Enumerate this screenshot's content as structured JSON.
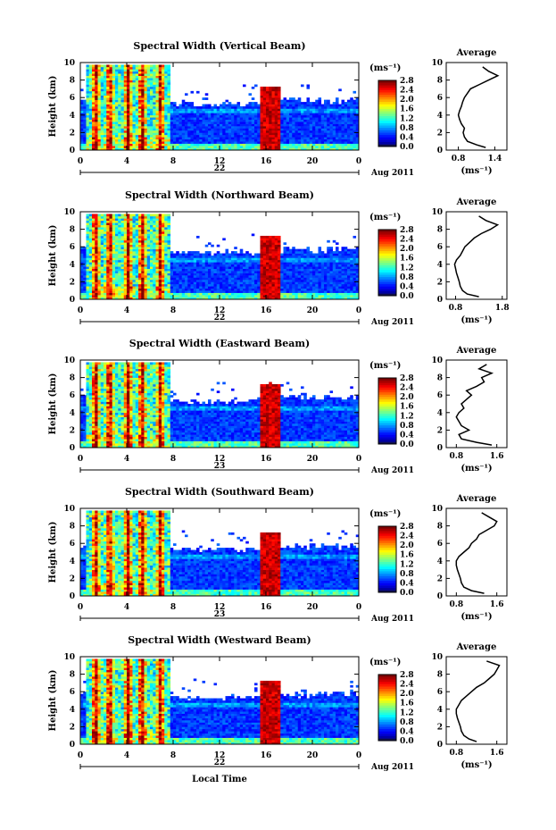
{
  "figure": {
    "xlabel_common": "Local Time",
    "date_label": "Aug 2011",
    "cbar_unit": "(ms⁻¹)",
    "avg_title": "Average",
    "avg_xlabel": "(ms⁻¹)"
  },
  "chart_data": [
    {
      "type": "heatmap",
      "title": "Spectral Width (Vertical Beam)",
      "ylabel": "Height (km)",
      "ylim": [
        0,
        10
      ],
      "yticks": [
        "0",
        "2",
        "4",
        "6",
        "8",
        "10"
      ],
      "xlim": [
        0,
        24
      ],
      "xticks": [
        "0",
        "4",
        "8",
        "12",
        "16",
        "20",
        "0"
      ],
      "day_label": "22",
      "colorbar": {
        "ticks": [
          "0.0",
          "0.4",
          "0.8",
          "1.2",
          "1.6",
          "2.0",
          "2.4",
          "2.8"
        ],
        "range": [
          0,
          2.8
        ]
      },
      "average_profile": {
        "xticks": [
          "0.8",
          "1.4"
        ],
        "xlim": [
          0.6,
          1.6
        ],
        "yticks": [
          "0",
          "2",
          "4",
          "6",
          "8",
          "10"
        ],
        "height_km": [
          0.3,
          0.6,
          1.0,
          1.5,
          2.0,
          2.5,
          3.0,
          3.5,
          4.0,
          4.5,
          5.0,
          5.5,
          6.0,
          6.5,
          7.0,
          7.5,
          8.0,
          8.5,
          9.0,
          9.5
        ],
        "width": [
          1.25,
          1.1,
          0.95,
          0.9,
          0.88,
          0.9,
          0.85,
          0.82,
          0.8,
          0.82,
          0.85,
          0.87,
          0.9,
          0.95,
          1.0,
          1.15,
          1.3,
          1.45,
          1.3,
          1.2
        ]
      }
    },
    {
      "type": "heatmap",
      "title": "Spectral Width (Northward Beam)",
      "ylabel": "Height (km)",
      "ylim": [
        0,
        10
      ],
      "yticks": [
        "0",
        "2",
        "4",
        "6",
        "8",
        "10"
      ],
      "xlim": [
        0,
        24
      ],
      "xticks": [
        "0",
        "4",
        "8",
        "12",
        "16",
        "20",
        "0"
      ],
      "day_label": "22",
      "colorbar": {
        "ticks": [
          "0.0",
          "0.4",
          "0.8",
          "1.2",
          "1.6",
          "2.0",
          "2.4",
          "2.8"
        ],
        "range": [
          0,
          2.8
        ]
      },
      "average_profile": {
        "xticks": [
          "0.8",
          "1.8"
        ],
        "xlim": [
          0.6,
          1.9
        ],
        "yticks": [
          "0",
          "2",
          "4",
          "6",
          "8",
          "10"
        ],
        "height_km": [
          0.3,
          0.6,
          1.0,
          1.5,
          2.0,
          2.5,
          3.0,
          3.5,
          4.0,
          4.5,
          5.0,
          5.5,
          6.0,
          6.5,
          7.0,
          7.5,
          8.0,
          8.5,
          9.0,
          9.5
        ],
        "width": [
          1.3,
          1.05,
          0.95,
          0.9,
          0.88,
          0.85,
          0.82,
          0.8,
          0.78,
          0.82,
          0.9,
          0.95,
          1.0,
          1.1,
          1.2,
          1.35,
          1.55,
          1.7,
          1.45,
          1.3
        ]
      }
    },
    {
      "type": "heatmap",
      "title": "Spectral Width (Eastward Beam)",
      "ylabel": "Height (km)",
      "ylim": [
        0,
        10
      ],
      "yticks": [
        "0",
        "2",
        "4",
        "6",
        "8",
        "10"
      ],
      "xlim": [
        0,
        24
      ],
      "xticks": [
        "0",
        "4",
        "8",
        "12",
        "16",
        "20",
        "0"
      ],
      "day_label": "23",
      "colorbar": {
        "ticks": [
          "0.0",
          "0.4",
          "0.8",
          "1.2",
          "1.6",
          "2.0",
          "2.4",
          "2.8"
        ],
        "range": [
          0,
          2.8
        ]
      },
      "average_profile": {
        "xticks": [
          "0.8",
          "1.6"
        ],
        "xlim": [
          0.6,
          1.8
        ],
        "yticks": [
          "0",
          "2",
          "4",
          "6",
          "8",
          "10"
        ],
        "height_km": [
          0.3,
          0.6,
          1.0,
          1.5,
          2.0,
          2.5,
          3.0,
          3.5,
          4.0,
          4.5,
          5.0,
          5.5,
          6.0,
          6.5,
          7.0,
          7.5,
          8.0,
          8.5,
          9.0,
          9.5
        ],
        "width": [
          1.5,
          1.2,
          0.9,
          0.85,
          1.05,
          0.9,
          0.85,
          0.8,
          0.85,
          0.95,
          0.9,
          1.0,
          1.1,
          1.0,
          1.2,
          1.35,
          1.3,
          1.5,
          1.25,
          1.4
        ]
      }
    },
    {
      "type": "heatmap",
      "title": "Spectral Width (Southward Beam)",
      "ylabel": "Height (km)",
      "ylim": [
        0,
        10
      ],
      "yticks": [
        "0",
        "2",
        "4",
        "6",
        "8",
        "10"
      ],
      "xlim": [
        0,
        24
      ],
      "xticks": [
        "0",
        "4",
        "8",
        "12",
        "16",
        "20",
        "0"
      ],
      "day_label": "23",
      "colorbar": {
        "ticks": [
          "0.0",
          "0.4",
          "0.8",
          "1.2",
          "1.6",
          "2.0",
          "2.4",
          "2.8"
        ],
        "range": [
          0,
          2.8
        ]
      },
      "average_profile": {
        "xticks": [
          "0.8",
          "1.6"
        ],
        "xlim": [
          0.6,
          1.8
        ],
        "yticks": [
          "0",
          "2",
          "4",
          "6",
          "8",
          "10"
        ],
        "height_km": [
          0.3,
          0.6,
          1.0,
          1.5,
          2.0,
          2.5,
          3.0,
          3.5,
          4.0,
          4.5,
          5.0,
          5.5,
          6.0,
          6.5,
          7.0,
          7.5,
          8.0,
          8.5,
          9.0,
          9.5
        ],
        "width": [
          1.35,
          1.1,
          0.95,
          0.9,
          0.88,
          0.85,
          0.82,
          0.8,
          0.8,
          0.85,
          0.95,
          1.05,
          1.1,
          1.2,
          1.25,
          1.4,
          1.55,
          1.6,
          1.45,
          1.3
        ]
      }
    },
    {
      "type": "heatmap",
      "title": "Spectral Width (Westward Beam)",
      "ylabel": "Height (km)",
      "ylim": [
        0,
        10
      ],
      "yticks": [
        "0",
        "2",
        "4",
        "6",
        "8",
        "10"
      ],
      "xlim": [
        0,
        24
      ],
      "xticks": [
        "0",
        "4",
        "8",
        "12",
        "16",
        "20",
        "0"
      ],
      "day_label": "22",
      "colorbar": {
        "ticks": [
          "0.0",
          "0.4",
          "0.8",
          "1.2",
          "1.6",
          "2.0",
          "2.4",
          "2.8"
        ],
        "range": [
          0,
          2.8
        ]
      },
      "average_profile": {
        "xticks": [
          "0.8",
          "1.6"
        ],
        "xlim": [
          0.6,
          1.8
        ],
        "yticks": [
          "0",
          "2",
          "4",
          "6",
          "8",
          "10"
        ],
        "height_km": [
          0.3,
          0.6,
          1.0,
          1.5,
          2.0,
          2.5,
          3.0,
          3.5,
          4.0,
          4.5,
          5.0,
          5.5,
          6.0,
          6.5,
          7.0,
          7.5,
          8.0,
          8.5,
          9.0,
          9.5
        ],
        "width": [
          1.2,
          1.05,
          0.95,
          0.9,
          0.88,
          0.85,
          0.82,
          0.8,
          0.8,
          0.85,
          0.9,
          1.0,
          1.1,
          1.2,
          1.35,
          1.45,
          1.55,
          1.6,
          1.65,
          1.4
        ]
      }
    }
  ]
}
